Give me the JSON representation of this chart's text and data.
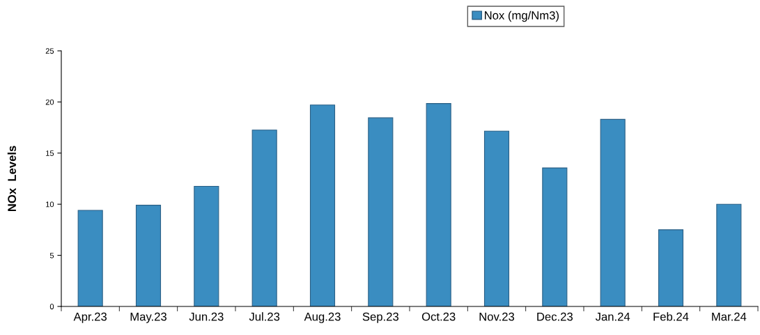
{
  "chart_data": {
    "type": "bar",
    "ylabel": "NOx  Levels",
    "categories": [
      "Apr.23",
      "May.23",
      "Jun.23",
      "Jul.23",
      "Aug.23",
      "Sep.23",
      "Oct.23",
      "Nov.23",
      "Dec.23",
      "Jan.24",
      "Feb.24",
      "Mar.24"
    ],
    "series": [
      {
        "name": "Nox (mg/Nm3)",
        "color": "#3a8dc1",
        "values": [
          9.4,
          9.9,
          11.75,
          17.25,
          19.7,
          18.45,
          19.85,
          17.15,
          13.55,
          18.3,
          7.5,
          10.0
        ]
      }
    ],
    "ylim": [
      0,
      25
    ],
    "yticks": [
      0,
      5,
      10,
      15,
      20,
      25
    ],
    "grid": false,
    "legend": "top"
  }
}
